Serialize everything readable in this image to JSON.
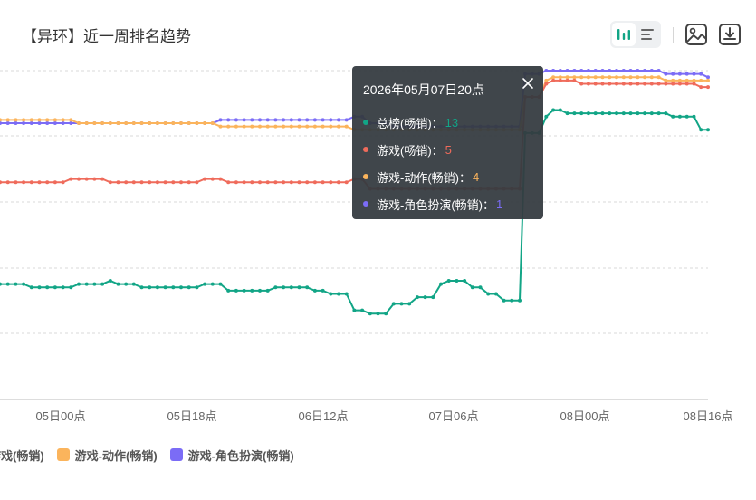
{
  "header": {
    "title": "【异环】近一周排名趋势",
    "toolbar": {
      "chart_icon": "bar-chart-icon",
      "list_icon": "list-icon",
      "image_icon": "image-save-icon",
      "download_icon": "download-icon"
    }
  },
  "tooltip": {
    "title": "2026年05月07日20点",
    "rows": [
      {
        "label": "总榜(畅销)：",
        "value": "13",
        "color": "#12a586"
      },
      {
        "label": "游戏(畅销)：",
        "value": "5",
        "color": "#ef6b5b"
      },
      {
        "label": "游戏-动作(畅销)：",
        "value": "4",
        "color": "#fbb45c"
      },
      {
        "label": "游戏-角色扮演(畅销)：",
        "value": "1",
        "color": "#7b6cf6"
      }
    ]
  },
  "legend": [
    {
      "label": "游戏(畅销)",
      "color": "#ef6b5b"
    },
    {
      "label": "游戏-动作(畅销)",
      "color": "#fbb45c"
    },
    {
      "label": "游戏-角色扮演(畅销)",
      "color": "#7b6cf6"
    }
  ],
  "chart_data": {
    "type": "line",
    "x_tick_labels": [
      "05日00点",
      "05日18点",
      "06日12点",
      "07日06点",
      "08日00点",
      "08日16点"
    ],
    "y_inverted": true,
    "series": [
      {
        "name": "总榜(畅销)",
        "color": "#12a586",
        "values": [
          66,
          66,
          66,
          66,
          67,
          67,
          67,
          67,
          67,
          67,
          66,
          66,
          66,
          66,
          65,
          66,
          66,
          66,
          67,
          67,
          67,
          67,
          67,
          67,
          67,
          67,
          66,
          66,
          66,
          68,
          68,
          68,
          68,
          68,
          68,
          67,
          67,
          67,
          67,
          67,
          68,
          68,
          69,
          69,
          69,
          74,
          74,
          75,
          75,
          75,
          72,
          72,
          72,
          70,
          70,
          70,
          66,
          65,
          65,
          65,
          67,
          67,
          69,
          69,
          71,
          71,
          71,
          20,
          20,
          20,
          15,
          13,
          13,
          14,
          14,
          14,
          14,
          14,
          14,
          14,
          14,
          14,
          14,
          14,
          14,
          14,
          14,
          14,
          15,
          15,
          15,
          15,
          19,
          19
        ]
      },
      {
        "name": "游戏(畅销)",
        "color": "#ef6b5b",
        "values": [
          35,
          35,
          35,
          35,
          35,
          35,
          35,
          35,
          35,
          34,
          34,
          34,
          34,
          34,
          35,
          35,
          35,
          35,
          35,
          35,
          35,
          35,
          35,
          35,
          35,
          35,
          34,
          34,
          34,
          35,
          35,
          35,
          35,
          35,
          35,
          35,
          35,
          35,
          35,
          35,
          35,
          35,
          35,
          35,
          35,
          34,
          34,
          37,
          37,
          37,
          37,
          37,
          37,
          37,
          37,
          37,
          37,
          37,
          37,
          37,
          37,
          37,
          37,
          37,
          37,
          37,
          37,
          9,
          9,
          9,
          5,
          4,
          4,
          4,
          4,
          5,
          5,
          5,
          5,
          5,
          5,
          5,
          5,
          5,
          5,
          5,
          5,
          5,
          5,
          5,
          5,
          5,
          6,
          6
        ]
      },
      {
        "name": "游戏-动作(畅销)",
        "color": "#fbb45c",
        "values": [
          16,
          16,
          16,
          16,
          16,
          16,
          16,
          16,
          16,
          16,
          17,
          17,
          17,
          17,
          17,
          17,
          17,
          17,
          17,
          17,
          17,
          17,
          17,
          17,
          17,
          17,
          17,
          17,
          18,
          18,
          18,
          18,
          18,
          18,
          18,
          18,
          18,
          18,
          18,
          18,
          18,
          18,
          18,
          18,
          18,
          19,
          19,
          19,
          19,
          19,
          19,
          19,
          19,
          19,
          19,
          19,
          19,
          19,
          19,
          19,
          19,
          19,
          19,
          19,
          19,
          19,
          19,
          9,
          9,
          9,
          4,
          3,
          3,
          3,
          3,
          3,
          3,
          3,
          3,
          3,
          3,
          3,
          3,
          3,
          3,
          3,
          3,
          4,
          4,
          4,
          4,
          4,
          4,
          4
        ]
      },
      {
        "name": "游戏-角色扮演(畅销)",
        "color": "#7b6cf6",
        "values": [
          17,
          17,
          17,
          17,
          17,
          17,
          17,
          17,
          17,
          17,
          17,
          17,
          17,
          17,
          17,
          17,
          17,
          17,
          17,
          17,
          17,
          17,
          17,
          17,
          17,
          17,
          17,
          17,
          16,
          16,
          16,
          16,
          16,
          16,
          16,
          16,
          16,
          16,
          16,
          16,
          16,
          16,
          16,
          16,
          16,
          15,
          15,
          17,
          17,
          17,
          18,
          18,
          18,
          18,
          18,
          18,
          18,
          18,
          18,
          18,
          18,
          18,
          18,
          18,
          18,
          18,
          18,
          2,
          2,
          2,
          1,
          1,
          1,
          1,
          1,
          1,
          1,
          1,
          1,
          1,
          1,
          1,
          1,
          1,
          1,
          1,
          1,
          2,
          2,
          2,
          2,
          2,
          2,
          3
        ]
      }
    ]
  }
}
